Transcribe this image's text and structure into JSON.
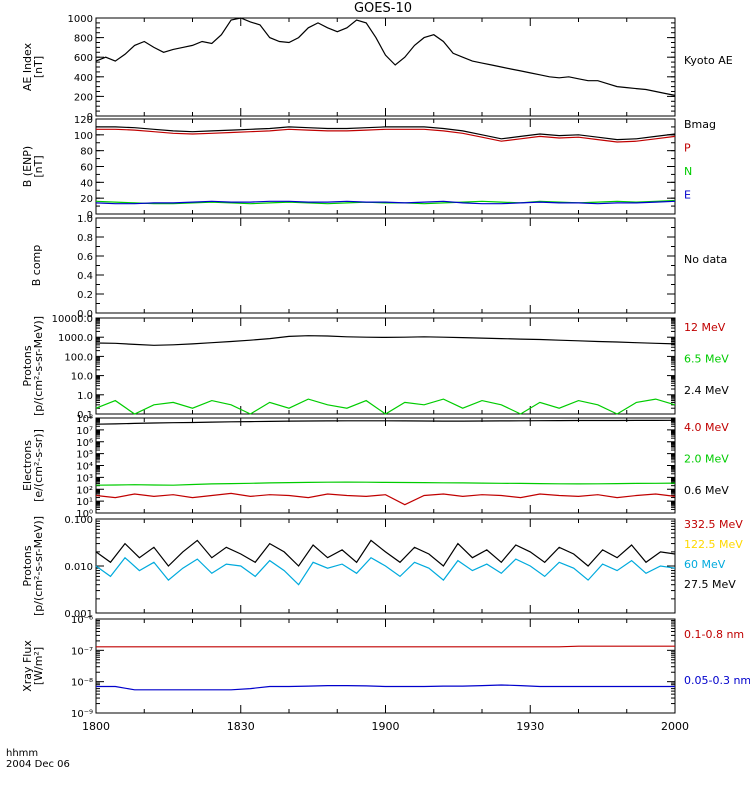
{
  "title": "GOES-10",
  "footer": {
    "line1": "hhmm",
    "line2": "2004 Dec 06"
  },
  "time_axis": {
    "ticks": [
      "1800",
      "1830",
      "1900",
      "1930",
      "2000"
    ],
    "range_min": [
      0,
      120
    ]
  },
  "colors": {
    "black": "#000000",
    "red": "#c00000",
    "green": "#00cc00",
    "blue": "#0000cc",
    "cyan": "#00aadd",
    "yellow": "#ffd800"
  },
  "chart_data": [
    {
      "type": "line",
      "ylabel": [
        "AE Index",
        "[nT]"
      ],
      "ylim": [
        0,
        1000
      ],
      "yticks": [
        "0",
        "200",
        "400",
        "600",
        "800",
        "1000"
      ],
      "minor_step": 50,
      "x_minutes": [
        0,
        2,
        4,
        6,
        8,
        10,
        12,
        14,
        16,
        18,
        20,
        22,
        24,
        26,
        28,
        30,
        32,
        34,
        36,
        38,
        40,
        42,
        44,
        46,
        48,
        50,
        52,
        54,
        56,
        58,
        60,
        62,
        64,
        66,
        68,
        70,
        72,
        74,
        76,
        78,
        80,
        82,
        84,
        86,
        88,
        90,
        92,
        94,
        96,
        98,
        100,
        102,
        104,
        106,
        108,
        110,
        112,
        114,
        116,
        118,
        120
      ],
      "series": [
        {
          "name": "Kyoto AE",
          "color": "#000000",
          "values": [
            560,
            600,
            560,
            630,
            720,
            760,
            700,
            650,
            680,
            700,
            720,
            760,
            740,
            830,
            980,
            1000,
            960,
            930,
            800,
            760,
            750,
            800,
            900,
            950,
            900,
            860,
            900,
            980,
            950,
            800,
            620,
            520,
            600,
            720,
            800,
            830,
            760,
            640,
            600,
            560,
            540,
            520,
            500,
            480,
            460,
            440,
            420,
            400,
            390,
            400,
            380,
            360,
            360,
            330,
            300,
            290,
            280,
            270,
            250,
            230,
            210
          ]
        }
      ]
    },
    {
      "type": "line",
      "ylabel": [
        "B (ENP)",
        "[nT]"
      ],
      "ylim": [
        0,
        120
      ],
      "yticks": [
        "0",
        "20",
        "40",
        "60",
        "80",
        "100",
        "120"
      ],
      "minor_step": 10,
      "x_minutes": [
        0,
        4,
        8,
        12,
        16,
        20,
        24,
        28,
        32,
        36,
        40,
        44,
        48,
        52,
        56,
        60,
        64,
        68,
        72,
        76,
        80,
        84,
        88,
        92,
        96,
        100,
        104,
        108,
        112,
        116,
        120
      ],
      "series": [
        {
          "name": "Bmag",
          "color": "#000000",
          "values": [
            110,
            110,
            109,
            107,
            105,
            104,
            105,
            106,
            107,
            108,
            110,
            109,
            108,
            108,
            109,
            110,
            110,
            110,
            108,
            105,
            100,
            95,
            98,
            101,
            99,
            100,
            97,
            94,
            95,
            98,
            101
          ]
        },
        {
          "name": "P",
          "color": "#c00000",
          "values": [
            107,
            107,
            106,
            104,
            102,
            101,
            102,
            103,
            104,
            105,
            107,
            106,
            105,
            105,
            106,
            107,
            107,
            107,
            105,
            102,
            97,
            92,
            95,
            98,
            96,
            97,
            94,
            91,
            92,
            95,
            98
          ]
        },
        {
          "name": "N",
          "color": "#00cc00",
          "values": [
            16,
            15,
            14,
            13,
            13,
            14,
            15,
            14,
            13,
            14,
            15,
            14,
            13,
            14,
            15,
            14,
            14,
            13,
            14,
            15,
            16,
            15,
            14,
            16,
            15,
            14,
            15,
            16,
            15,
            16,
            17
          ]
        },
        {
          "name": "E",
          "color": "#0000cc",
          "values": [
            14,
            13,
            13,
            14,
            14,
            15,
            16,
            15,
            15,
            16,
            16,
            15,
            15,
            16,
            15,
            15,
            14,
            15,
            16,
            14,
            13,
            13,
            14,
            15,
            14,
            14,
            13,
            14,
            14,
            15,
            16
          ]
        }
      ]
    },
    {
      "type": "line",
      "ylabel": [
        "B comp"
      ],
      "ylim": [
        0,
        1
      ],
      "yticks": [
        "0.0",
        "0.2",
        "0.4",
        "0.6",
        "0.8",
        "1.0"
      ],
      "minor_step": 0.1,
      "series": [
        {
          "name": "No data",
          "color": "#000000",
          "values": []
        }
      ]
    },
    {
      "type": "line",
      "ylabel": [
        "Protons",
        "[p/(cm²-s-sr-MeV)]"
      ],
      "log": true,
      "ylim": [
        0.1,
        10000
      ],
      "yticks": [
        "0.1",
        "1.0",
        "10.0",
        "100.0",
        "1000.0",
        "10000.0"
      ],
      "x_minutes": [
        0,
        4,
        8,
        12,
        16,
        20,
        24,
        28,
        32,
        36,
        40,
        44,
        48,
        52,
        56,
        60,
        64,
        68,
        72,
        76,
        80,
        84,
        88,
        92,
        96,
        100,
        104,
        108,
        112,
        116,
        120
      ],
      "series": [
        {
          "name": "12 MeV",
          "color": "#c00000",
          "values": []
        },
        {
          "name": "6.5 MeV",
          "color": "#00cc00",
          "values": [
            0.2,
            0.5,
            0.1,
            0.3,
            0.4,
            0.2,
            0.5,
            0.3,
            0.1,
            0.4,
            0.2,
            0.6,
            0.3,
            0.2,
            0.5,
            0.1,
            0.4,
            0.3,
            0.6,
            0.2,
            0.5,
            0.3,
            0.1,
            0.4,
            0.2,
            0.5,
            0.3,
            0.1,
            0.4,
            0.6,
            0.3
          ]
        },
        {
          "name": "2.4 MeV",
          "color": "#000000",
          "values": [
            500,
            480,
            420,
            380,
            400,
            450,
            520,
            600,
            700,
            850,
            1100,
            1200,
            1150,
            1050,
            1000,
            980,
            1000,
            1050,
            1000,
            950,
            900,
            850,
            800,
            760,
            700,
            650,
            600,
            560,
            520,
            480,
            450
          ]
        }
      ]
    },
    {
      "type": "line",
      "ylabel": [
        "Electrons",
        "[e/(cm²-s-sr)]"
      ],
      "log": true,
      "ylim": [
        1,
        100000000
      ],
      "yticks": [
        "10⁰",
        "10¹",
        "10²",
        "10³",
        "10⁴",
        "10⁵",
        "10⁶",
        "10⁷",
        "10⁸"
      ],
      "x_minutes": [
        0,
        4,
        8,
        12,
        16,
        20,
        24,
        28,
        32,
        36,
        40,
        44,
        48,
        52,
        56,
        60,
        64,
        68,
        72,
        76,
        80,
        84,
        88,
        92,
        96,
        100,
        104,
        108,
        112,
        116,
        120
      ],
      "series": [
        {
          "name": "4.0 MeV",
          "color": "#c00000",
          "values": [
            30,
            20,
            40,
            25,
            35,
            20,
            30,
            45,
            25,
            35,
            30,
            20,
            40,
            30,
            25,
            35,
            5,
            30,
            40,
            25,
            35,
            30,
            20,
            40,
            30,
            25,
            35,
            20,
            30,
            40,
            25
          ]
        },
        {
          "name": "2.0 MeV",
          "color": "#00cc00",
          "values": [
            220,
            230,
            240,
            230,
            220,
            250,
            280,
            300,
            320,
            340,
            360,
            380,
            390,
            400,
            390,
            380,
            370,
            360,
            350,
            340,
            330,
            320,
            310,
            300,
            290,
            280,
            290,
            300,
            310,
            320,
            330
          ]
        },
        {
          "name": "0.6 MeV",
          "color": "#000000",
          "values": [
            30000000,
            32000000,
            35000000,
            38000000,
            40000000,
            42000000,
            45000000,
            48000000,
            50000000,
            52000000,
            55000000,
            56000000,
            57000000,
            58000000,
            58000000,
            58000000,
            57000000,
            56000000,
            55000000,
            55000000,
            56000000,
            57000000,
            58000000,
            59000000,
            60000000,
            61000000,
            62000000,
            62000000,
            63000000,
            63000000,
            64000000
          ]
        }
      ]
    },
    {
      "type": "line",
      "ylabel": [
        "Protons",
        "[p/(cm²-s-sr-MeV)]"
      ],
      "log": true,
      "ylim": [
        0.001,
        0.1
      ],
      "yticks": [
        "0.001",
        "0.010",
        "0.100"
      ],
      "x_minutes": [
        0,
        3,
        6,
        9,
        12,
        15,
        18,
        21,
        24,
        27,
        30,
        33,
        36,
        39,
        42,
        45,
        48,
        51,
        54,
        57,
        60,
        63,
        66,
        69,
        72,
        75,
        78,
        81,
        84,
        87,
        90,
        93,
        96,
        99,
        102,
        105,
        108,
        111,
        114,
        117,
        120
      ],
      "series": [
        {
          "name": "332.5 MeV",
          "color": "#c00000",
          "values": []
        },
        {
          "name": "122.5 MeV",
          "color": "#ffd800",
          "values": []
        },
        {
          "name": "60 MeV",
          "color": "#00aadd",
          "values": [
            0.01,
            0.006,
            0.015,
            0.008,
            0.012,
            0.005,
            0.009,
            0.014,
            0.007,
            0.011,
            0.01,
            0.006,
            0.013,
            0.008,
            0.004,
            0.012,
            0.009,
            0.011,
            0.007,
            0.015,
            0.01,
            0.006,
            0.012,
            0.009,
            0.005,
            0.013,
            0.008,
            0.011,
            0.007,
            0.014,
            0.01,
            0.006,
            0.012,
            0.009,
            0.005,
            0.011,
            0.008,
            0.013,
            0.007,
            0.01,
            0.009
          ]
        },
        {
          "name": "27.5 MeV",
          "color": "#000000",
          "values": [
            0.02,
            0.012,
            0.03,
            0.015,
            0.025,
            0.01,
            0.02,
            0.035,
            0.015,
            0.025,
            0.018,
            0.012,
            0.03,
            0.02,
            0.01,
            0.028,
            0.015,
            0.022,
            0.012,
            0.035,
            0.02,
            0.012,
            0.025,
            0.018,
            0.01,
            0.03,
            0.015,
            0.022,
            0.012,
            0.028,
            0.02,
            0.012,
            0.025,
            0.018,
            0.01,
            0.022,
            0.015,
            0.028,
            0.012,
            0.02,
            0.018
          ]
        }
      ]
    },
    {
      "type": "line",
      "ylabel": [
        "Xray Flux",
        "[W/m²]"
      ],
      "log": true,
      "ylim": [
        1e-09,
        1e-06
      ],
      "yticks": [
        "10⁻⁹",
        "10⁻⁸",
        "10⁻⁷",
        "10⁻⁶"
      ],
      "x_minutes": [
        0,
        4,
        8,
        12,
        16,
        20,
        24,
        28,
        32,
        36,
        40,
        44,
        48,
        52,
        56,
        60,
        64,
        68,
        72,
        76,
        80,
        84,
        88,
        92,
        96,
        100,
        104,
        108,
        112,
        116,
        120
      ],
      "series": [
        {
          "name": "0.1-0.8 nm",
          "color": "#c00000",
          "values": [
            1.3e-07,
            1.3e-07,
            1.3e-07,
            1.3e-07,
            1.3e-07,
            1.3e-07,
            1.3e-07,
            1.3e-07,
            1.3e-07,
            1.3e-07,
            1.3e-07,
            1.3e-07,
            1.3e-07,
            1.3e-07,
            1.3e-07,
            1.3e-07,
            1.3e-07,
            1.3e-07,
            1.3e-07,
            1.3e-07,
            1.3e-07,
            1.3e-07,
            1.3e-07,
            1.3e-07,
            1.3e-07,
            1.35e-07,
            1.35e-07,
            1.35e-07,
            1.35e-07,
            1.35e-07,
            1.35e-07
          ]
        },
        {
          "name": "0.05-0.3 nm",
          "color": "#0000cc",
          "values": [
            7e-09,
            7e-09,
            5.5e-09,
            5.5e-09,
            5.5e-09,
            5.5e-09,
            5.5e-09,
            5.5e-09,
            6e-09,
            7e-09,
            7e-09,
            7.2e-09,
            7.5e-09,
            7.5e-09,
            7.3e-09,
            7e-09,
            7e-09,
            7e-09,
            7.2e-09,
            7.2e-09,
            7.5e-09,
            7.8e-09,
            7.5e-09,
            7e-09,
            7e-09,
            7e-09,
            7e-09,
            7e-09,
            7e-09,
            7e-09,
            7e-09
          ]
        }
      ]
    }
  ]
}
